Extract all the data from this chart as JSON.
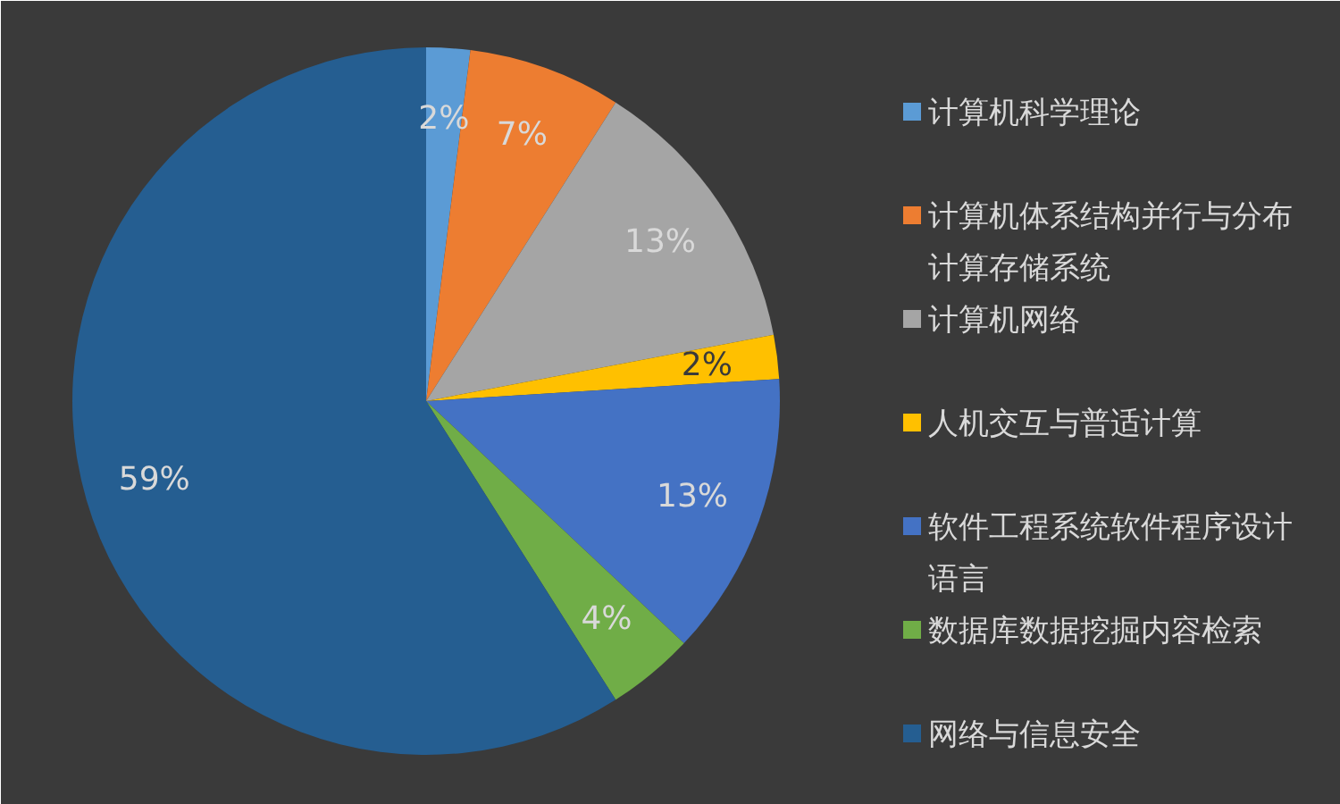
{
  "chart_data": {
    "type": "pie",
    "categories": [
      "计算机科学理论",
      "计算机体系结构并行与分布计算存储系统",
      "计算机网络",
      "人机交互与普适计算",
      "软件工程系统软件程序设计语言",
      "数据库数据挖掘内容检索",
      "网络与信息安全"
    ],
    "values": [
      2,
      7,
      13,
      2,
      13,
      4,
      59
    ],
    "colors": [
      "#5b9bd5",
      "#ed7d31",
      "#a5a5a5",
      "#ffc000",
      "#4472c4",
      "#70ad47",
      "#255e91"
    ],
    "value_labels": [
      "2%",
      "7%",
      "13%",
      "2%",
      "13%",
      "4%",
      "59%"
    ],
    "legend": "right"
  }
}
